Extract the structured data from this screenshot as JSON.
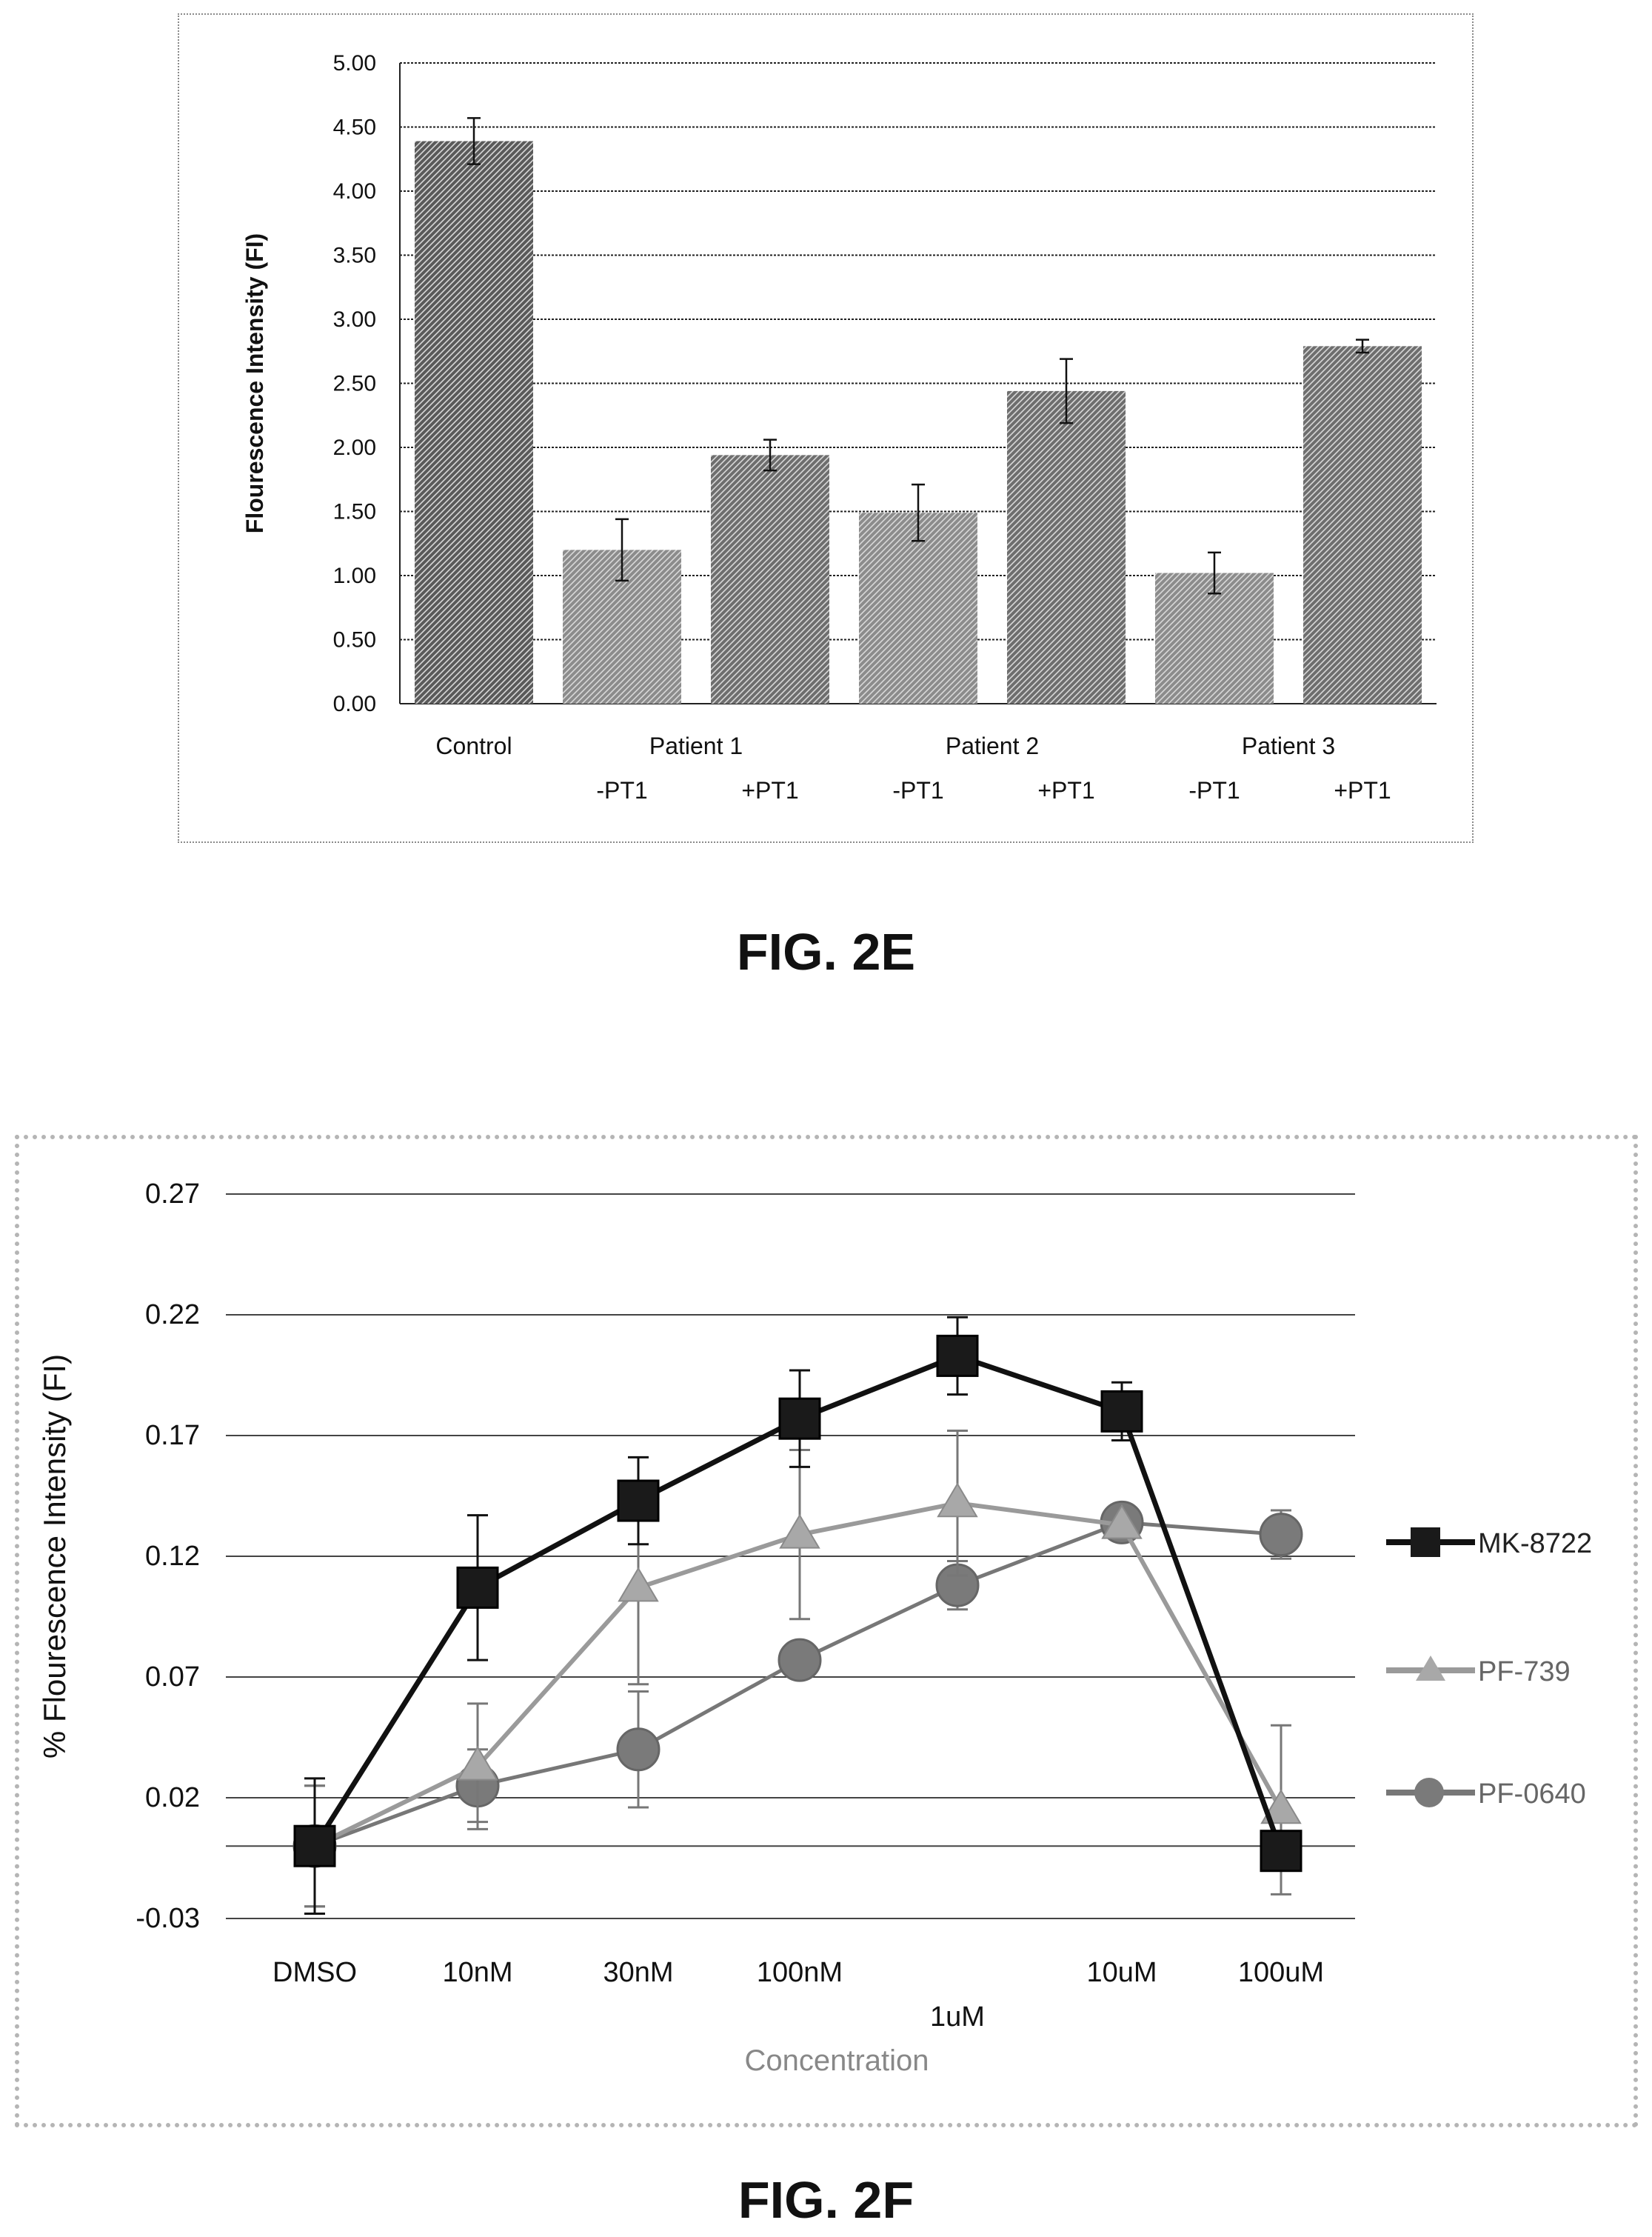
{
  "figures": {
    "fig_2e_caption": "FIG. 2E",
    "fig_2f_caption": "FIG. 2F"
  },
  "chart_data": [
    {
      "type": "bar",
      "title": "",
      "xlabel": "",
      "ylabel": "Flourescence Intensity (FI)",
      "ylim": [
        0,
        5
      ],
      "yticks": [
        "0.00",
        "0.50",
        "1.00",
        "1.50",
        "2.00",
        "2.50",
        "3.00",
        "3.50",
        "4.00",
        "4.50",
        "5.00"
      ],
      "grid": true,
      "legend": "none",
      "categories": [
        "Control",
        "-PT1",
        "+PT1",
        "-PT1",
        "+PT1",
        "-PT1",
        "+PT1"
      ],
      "group_labels": [
        "Patient 1",
        "Patient 2",
        "Patient 3"
      ],
      "values": [
        4.39,
        1.2,
        1.94,
        1.49,
        2.44,
        1.02,
        2.79
      ],
      "error": [
        0.18,
        0.24,
        0.12,
        0.22,
        0.25,
        0.16,
        0.05
      ],
      "colors": {
        "control_bar": "#5a5a5a",
        "bar": "#8c8c8c",
        "bar_dark": "#6e6e6e"
      }
    },
    {
      "type": "line",
      "title": "",
      "xlabel": "Concentration",
      "ylabel": "% Flourescence Intensity (FI)",
      "ylim": [
        -0.03,
        0.27
      ],
      "yticks": [
        "0.27",
        "0.22",
        "0.17",
        "0.12",
        "0.07",
        "0.02",
        "-0.03"
      ],
      "grid": true,
      "legend": "right",
      "categories": [
        "DMSO",
        "10nM",
        "30nM",
        "100nM",
        "1uM",
        "10uM",
        "100uM"
      ],
      "series": [
        {
          "name": "MK-8722",
          "marker": "square",
          "color": "#111111",
          "values": [
            0.0,
            0.107,
            0.143,
            0.177,
            0.203,
            0.18,
            -0.002
          ],
          "error": [
            0.028,
            0.03,
            0.018,
            0.02,
            0.016,
            0.012,
            0.0
          ]
        },
        {
          "name": "PF-739",
          "marker": "triangle",
          "color": "#9a9a9a",
          "values": [
            0.0,
            0.033,
            0.107,
            0.129,
            0.142,
            0.133,
            0.015
          ],
          "error": [
            0.025,
            0.026,
            0.04,
            0.035,
            0.03,
            0.0,
            0.035
          ]
        },
        {
          "name": "PF-0640",
          "marker": "circle",
          "color": "#777777",
          "values": [
            0.0,
            0.025,
            0.04,
            0.077,
            0.108,
            0.134,
            0.129
          ],
          "error": [
            0.025,
            0.015,
            0.024,
            0.0,
            0.01,
            0.0,
            0.01
          ]
        }
      ]
    }
  ]
}
